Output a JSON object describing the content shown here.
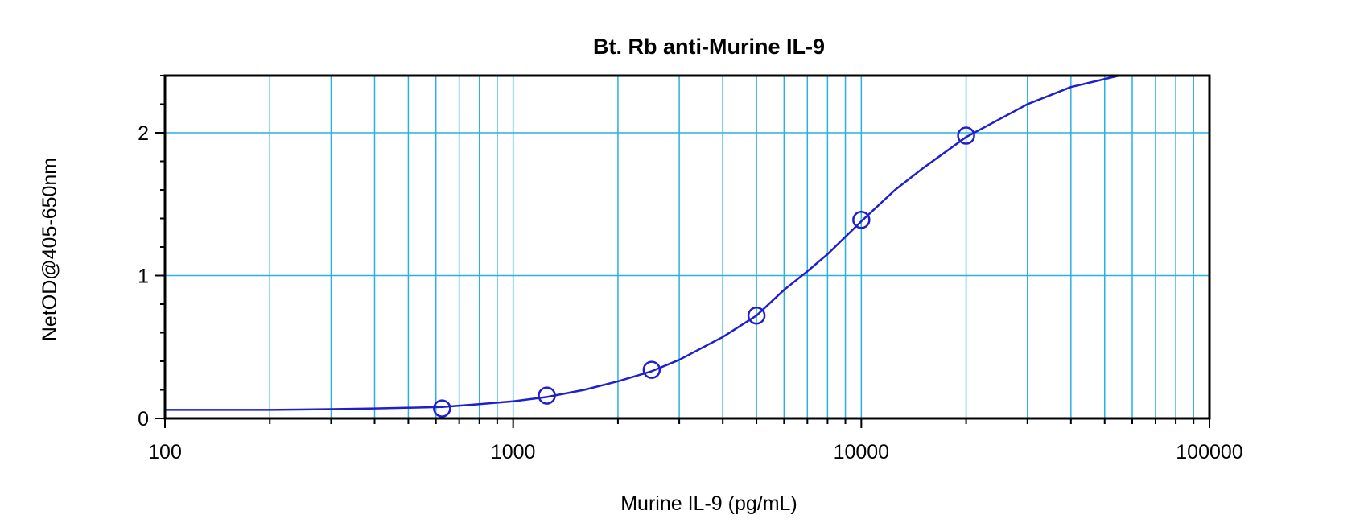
{
  "chart_data": {
    "type": "scatter",
    "title": "Bt. Rb anti-Murine IL-9",
    "xlabel": "Murine IL-9 (pg/mL)",
    "ylabel": "NetOD@405-650nm",
    "x_scale": "log",
    "xlim": [
      100,
      100000
    ],
    "ylim": [
      0,
      2.4
    ],
    "x_ticks": [
      100,
      1000,
      10000,
      100000
    ],
    "x_tick_labels": [
      "100",
      "1000",
      "10000",
      "100000"
    ],
    "y_ticks": [
      0,
      1,
      2
    ],
    "y_tick_labels": [
      "0",
      "1",
      "2"
    ],
    "grid": true,
    "legend": "none",
    "series": [
      {
        "x": [
          625,
          1250,
          2500,
          5000,
          10000,
          20000
        ],
        "y": [
          0.07,
          0.16,
          0.34,
          0.72,
          1.39,
          1.98
        ]
      }
    ],
    "curve": {
      "x": [
        100,
        200,
        300,
        400,
        625,
        800,
        1000,
        1250,
        1600,
        2000,
        2500,
        3000,
        4000,
        5000,
        6000,
        7000,
        8000,
        10000,
        12500,
        15000,
        20000,
        30000,
        40000,
        55000
      ],
      "y": [
        0.06,
        0.06,
        0.065,
        0.07,
        0.08,
        0.1,
        0.12,
        0.15,
        0.2,
        0.26,
        0.33,
        0.41,
        0.57,
        0.72,
        0.9,
        1.03,
        1.15,
        1.38,
        1.6,
        1.75,
        1.97,
        2.2,
        2.32,
        2.4
      ]
    },
    "colors": {
      "grid": "#2ab0e0",
      "series": "#1f1fcc",
      "frame": "#000000"
    }
  }
}
